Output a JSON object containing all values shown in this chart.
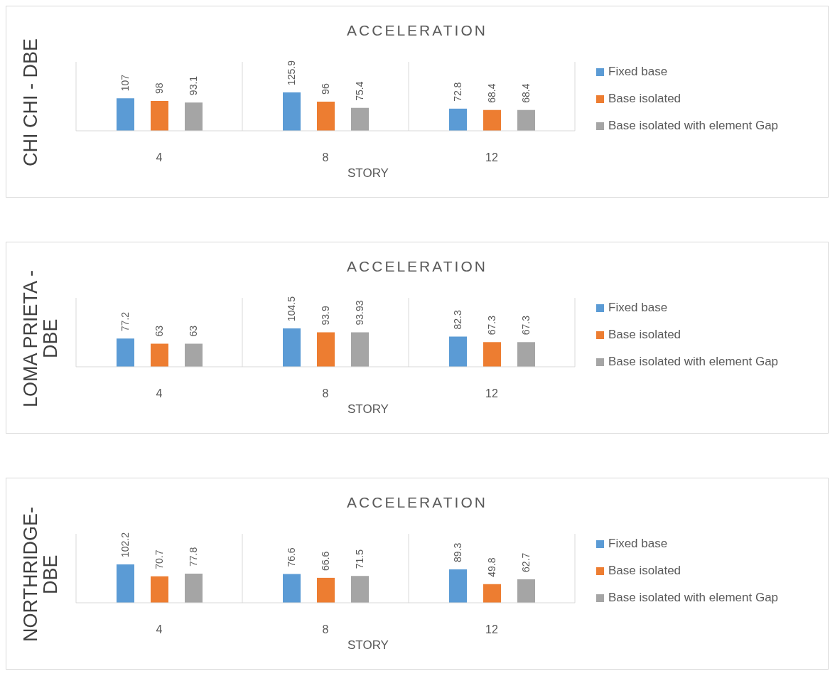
{
  "chart_data": [
    {
      "type": "bar",
      "title": "ACCELERATION",
      "xlabel": "STORY",
      "ylabel": "CHI CHI - DBE",
      "categories": [
        "4",
        "8",
        "12"
      ],
      "series": [
        {
          "name": "Fixed base",
          "color": "#5b9bd5",
          "values": [
            107,
            125.9,
            72.8
          ]
        },
        {
          "name": "Base isolated",
          "color": "#ed7d31",
          "values": [
            98,
            96,
            68.4
          ]
        },
        {
          "name": "Base isolated with element Gap",
          "color": "#a5a5a5",
          "values": [
            93.1,
            75.4,
            68.4
          ]
        }
      ],
      "data_labels": true,
      "legend": "right",
      "grid": "x",
      "tick_labels": "x"
    },
    {
      "type": "bar",
      "title": "ACCELERATION",
      "xlabel": "STORY",
      "ylabel": "LOMA PRIETA - DBE",
      "categories": [
        "4",
        "8",
        "12"
      ],
      "series": [
        {
          "name": "Fixed base",
          "color": "#5b9bd5",
          "values": [
            77.2,
            104.5,
            82.3
          ]
        },
        {
          "name": "Base isolated",
          "color": "#ed7d31",
          "values": [
            63,
            93.9,
            67.3
          ]
        },
        {
          "name": "Base isolated with element Gap",
          "color": "#a5a5a5",
          "values": [
            63,
            93.93,
            67.3
          ]
        }
      ],
      "data_labels": true,
      "legend": "right",
      "grid": "x",
      "tick_labels": "x"
    },
    {
      "type": "bar",
      "title": "ACCELERATION",
      "xlabel": "STORY",
      "ylabel": "NORTHRIDGE-DBE",
      "categories": [
        "4",
        "8",
        "12"
      ],
      "series": [
        {
          "name": "Fixed base",
          "color": "#5b9bd5",
          "values": [
            102.2,
            76.6,
            89.3
          ]
        },
        {
          "name": "Base isolated",
          "color": "#ed7d31",
          "values": [
            70.7,
            66.6,
            49.8
          ]
        },
        {
          "name": "Base isolated with element Gap",
          "color": "#a5a5a5",
          "values": [
            77.8,
            71.5,
            62.7
          ]
        }
      ],
      "data_labels": true,
      "legend": "right",
      "grid": "x",
      "tick_labels": "x"
    }
  ]
}
